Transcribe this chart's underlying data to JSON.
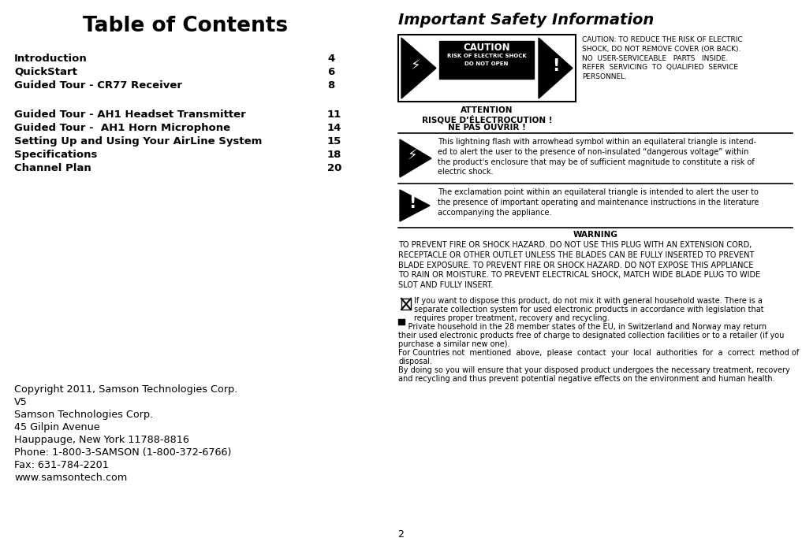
{
  "bg_color": "#ffffff",
  "title_left": "Table of Contents",
  "title_right": "Important Safety Information",
  "toc_entries": [
    [
      "Introduction",
      "4"
    ],
    [
      "QuickStart",
      "6"
    ],
    [
      "Guided Tour - CR77 Receiver",
      "8"
    ],
    [
      "",
      ""
    ],
    [
      "Guided Tour - AH1 Headset Transmitter",
      "11"
    ],
    [
      "Guided Tour -  AH1 Horn Microphone",
      "14"
    ],
    [
      "Setting Up and Using Your AirLine System",
      "15"
    ],
    [
      "Specifications",
      "18"
    ],
    [
      "Channel Plan",
      "20"
    ]
  ],
  "copyright_lines": [
    "Copyright 2011, Samson Technologies Corp.",
    "V5",
    "Samson Technologies Corp.",
    "45 Gilpin Avenue",
    "Hauppauge, New York 11788-8816",
    "Phone: 1-800-3-SAMSON (1-800-372-6766)",
    "Fax: 631-784-2201",
    "www.samsontech.com"
  ],
  "caution_text": "CAUTION: TO REDUCE THE RISK OF ELECTRIC\nSHOCK, DO NOT REMOVE COVER (OR BACK).\nNO  USER-SERVICEABLE   PARTS   INSIDE.\nREFER  SERVICING  TO  QUALIFIED  SERVICE\nPERSONNEL.",
  "attention_lines": [
    "ATTENTION",
    "RISQUE D’ÉLECTROCUTION !",
    "NE PAS OUVRIR !"
  ],
  "lightning_text": "This lightning flash with arrowhead symbol within an equilateral triangle is intend-\ned to alert the user to the presence of non-insulated “dangerous voltage” within\nthe product's enclosure that may be of sufficient magnitude to constitute a risk of\nelectric shock.",
  "exclamation_text": "The exclamation point within an equilateral triangle is intended to alert the user to\nthe presence of important operating and maintenance instructions in the literature\naccompanying the appliance.",
  "warning_title": "WARNING",
  "warning_text": "TO PREVENT FIRE OR SHOCK HAZARD. DO NOT USE THIS PLUG WITH AN EXTENSION CORD,\nRECEPTACLE OR OTHER OUTLET UNLESS THE BLADES CAN BE FULLY INSERTED TO PREVENT\nBLADE EXPOSURE. TO PREVENT FIRE OR SHOCK HAZARD. DO NOT EXPOSE THIS APPLIANCE\nTO RAIN OR MOISTURE. TO PREVENT ELECTRICAL SHOCK, MATCH WIDE BLADE PLUG TO WIDE\nSLOT AND FULLY INSERT.",
  "dispose_line1": "If you want to dispose this product, do not mix it with general household waste. There is a",
  "dispose_line2": "separate collection system for used electronic products in accordance with legislation that",
  "dispose_line3": "requires proper treatment, recovery and recycling.",
  "dispose_line4": "    Private household in the 28 member states of the EU, in Switzerland and Norway may return",
  "dispose_line5": "their used electronic products free of charge to designated collection facilities or to a retailer (if you",
  "dispose_line6": "purchase a similar new one).",
  "dispose_line7": "For Countries not  mentioned  above,  please  contact  your  local  authorities  for  a  correct  method of",
  "dispose_line8": "disposal.",
  "dispose_line9": "By doing so you will ensure that your disposed product undergoes the necessary treatment, recovery",
  "dispose_line10": "and recycling and thus prevent potential negative effects on the environment and human health.",
  "page_number": "2"
}
